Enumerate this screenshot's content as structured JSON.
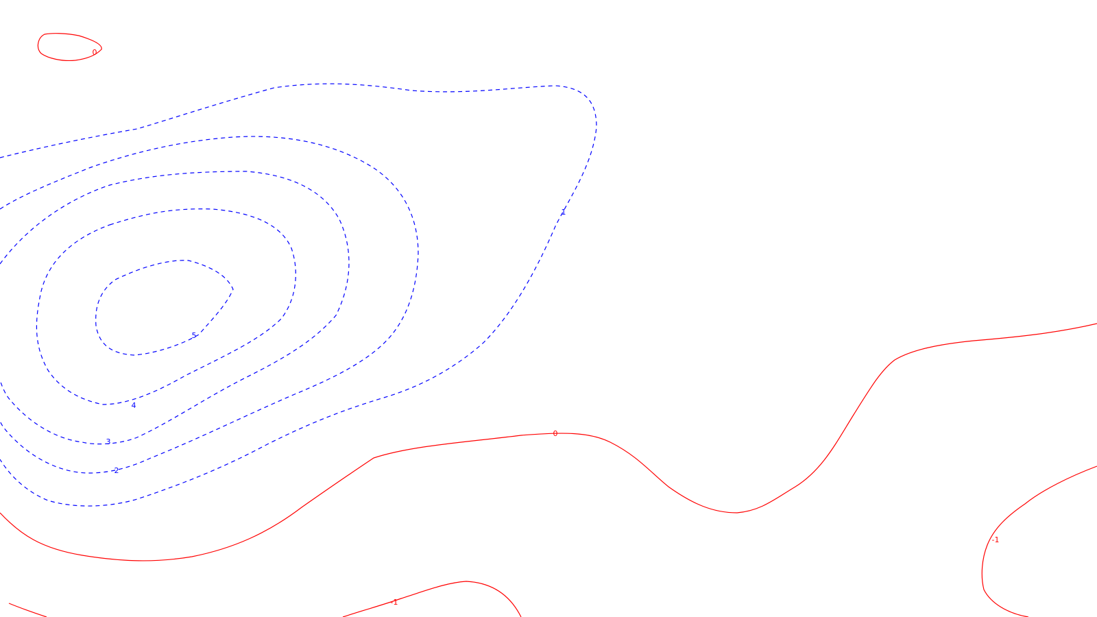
{
  "chart_data": {
    "type": "contour",
    "title": "",
    "xlabel": "",
    "ylabel": "",
    "grid": false,
    "colors": {
      "positive": "#0000ff",
      "zero_and_negative": "#ff0000"
    },
    "levels": [
      {
        "value": 5,
        "label": "5",
        "style": "dashed",
        "color": "#0000ff"
      },
      {
        "value": 4,
        "label": "4",
        "style": "dashed",
        "color": "#0000ff"
      },
      {
        "value": 3,
        "label": "3",
        "style": "dashed",
        "color": "#0000ff"
      },
      {
        "value": 2,
        "label": "2",
        "style": "dashed",
        "color": "#0000ff"
      },
      {
        "value": 1,
        "label": "1",
        "style": "dashed",
        "color": "#0000ff"
      },
      {
        "value": 0,
        "label": "0",
        "style": "solid",
        "color": "#ff0000"
      },
      {
        "value": -1,
        "label": "-1",
        "style": "solid",
        "color": "#ff0000"
      }
    ]
  }
}
